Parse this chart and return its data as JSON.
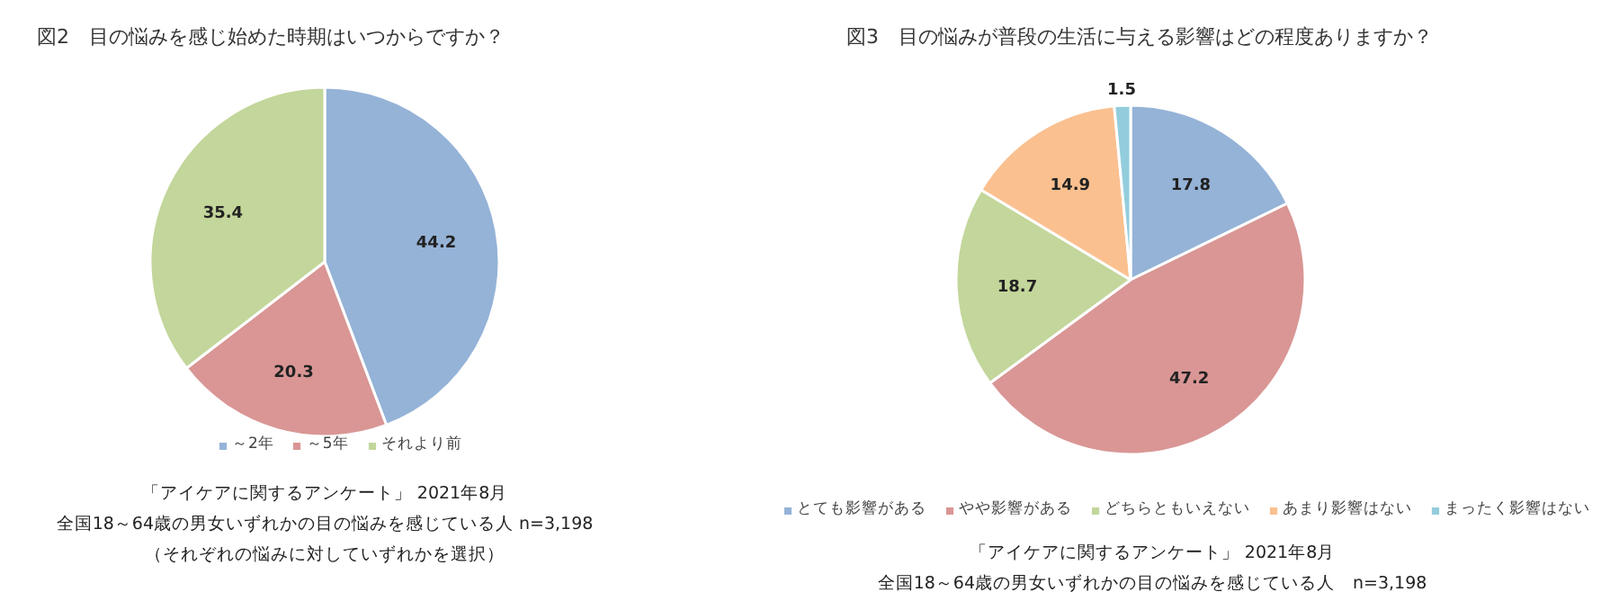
{
  "chart_data": [
    {
      "type": "pie",
      "title": "図2　目の悩みを感じ始めた時期はいつからですか？",
      "categories": [
        "～2年",
        "～5年",
        "それより前"
      ],
      "values": [
        44.2,
        20.3,
        35.4
      ],
      "colors": [
        "#95b3d7",
        "#d99694",
        "#c3d69b"
      ],
      "data_labels": true,
      "legend": "bottom",
      "annotations": [
        "「アイケアに関するアンケート」 2021年8月",
        "全国18～64歳の男女いずれかの目の悩みを感じている人 n=3,198",
        "（それぞれの悩みに対していずれかを選択）"
      ]
    },
    {
      "type": "pie",
      "title": "図3　目の悩みが普段の生活に与える影響はどの程度ありますか？",
      "categories": [
        "とても影響がある",
        "やや影響がある",
        "どちらともいえない",
        "あまり影響はない",
        "まったく影響はない"
      ],
      "values": [
        17.8,
        47.2,
        18.7,
        14.9,
        1.5
      ],
      "colors": [
        "#95b3d7",
        "#d99694",
        "#c3d69b",
        "#fac090",
        "#93cddd"
      ],
      "data_labels": true,
      "legend": "bottom",
      "annotations": [
        "「アイケアに関するアンケート」 2021年8月",
        "全国18～64歳の男女いずれかの目の悩みを感じている人　n=3,198"
      ]
    }
  ]
}
